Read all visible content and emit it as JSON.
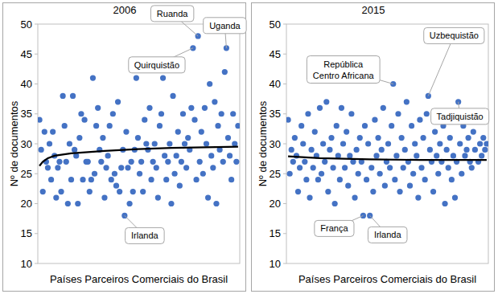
{
  "chart_data": [
    {
      "type": "scatter",
      "title": "2006",
      "x_label": "Países Parceiros Comerciais do Brasil",
      "y_label": "Nº de documentos",
      "xlim": [
        0,
        121
      ],
      "ylim": [
        10,
        50
      ],
      "yticks": [
        10,
        15,
        20,
        25,
        30,
        35,
        40,
        45,
        50
      ],
      "tick_labels": "y",
      "grid": false,
      "series": [
        {
          "type": "scatter",
          "color": "#4472c4",
          "marker": "circle",
          "x": [
            1,
            2,
            3,
            4,
            5,
            6,
            7,
            8,
            9,
            10,
            11,
            12,
            13,
            14,
            15,
            16,
            17,
            18,
            19,
            20,
            21,
            22,
            23,
            24,
            25,
            26,
            27,
            28,
            29,
            30,
            31,
            32,
            33,
            34,
            35,
            36,
            37,
            38,
            39,
            40,
            41,
            42,
            43,
            44,
            45,
            46,
            47,
            48,
            49,
            50,
            51,
            52,
            53,
            54,
            55,
            56,
            57,
            58,
            59,
            60,
            61,
            62,
            63,
            64,
            65,
            66,
            67,
            68,
            69,
            70,
            71,
            72,
            73,
            74,
            75,
            76,
            77,
            78,
            79,
            80,
            81,
            82,
            83,
            84,
            85,
            86,
            87,
            88,
            89,
            90,
            91,
            92,
            93,
            94,
            95,
            96,
            97,
            98,
            99,
            100,
            101,
            102,
            103,
            104,
            105,
            106,
            107,
            108,
            109,
            110,
            111,
            112,
            113,
            114,
            115,
            116,
            117,
            118,
            119,
            120
          ],
          "values": [
            34,
            29,
            22,
            32,
            27,
            26,
            30,
            24,
            32,
            28,
            21,
            26,
            27,
            22,
            38,
            33,
            27,
            20,
            30,
            24,
            38,
            29,
            28,
            20,
            31,
            35,
            24,
            34,
            27,
            27,
            22,
            24,
            41,
            25,
            33,
            36,
            29,
            27,
            31,
            21,
            26,
            28,
            33,
            24,
            35,
            25,
            23,
            37,
            22,
            26,
            29,
            18,
            32,
            26,
            20,
            27,
            22,
            29,
            41,
            31,
            25,
            27,
            22,
            34,
            30,
            29,
            36,
            24,
            27,
            30,
            26,
            21,
            33,
            35,
            41,
            28,
            24,
            27,
            30,
            20,
            38,
            25,
            28,
            32,
            23,
            27,
            35,
            30,
            26,
            31,
            29,
            36,
            46,
            34,
            24,
            48,
            27,
            32,
            25,
            36,
            30,
            21,
            40,
            28,
            26,
            37,
            20,
            33,
            29,
            35,
            27,
            42,
            46,
            31,
            28,
            24,
            35,
            30,
            27,
            33
          ]
        },
        {
          "type": "line",
          "color": "#000000",
          "line_style": "solid",
          "x": [
            1,
            3,
            6,
            10,
            20,
            40,
            60,
            80,
            100,
            120
          ],
          "values": [
            26.3,
            27,
            27.6,
            28,
            28.4,
            28.8,
            29.1,
            29.3,
            29.4,
            29.5
          ]
        }
      ],
      "annotations": [
        {
          "text": "Ruanda",
          "x": 96,
          "y": 48
        },
        {
          "text": "Uganda",
          "x": 113,
          "y": 46
        },
        {
          "text": "Quirquistão",
          "x": 93,
          "y": 46
        },
        {
          "text": "Irlanda",
          "x": 52,
          "y": 18
        }
      ]
    },
    {
      "type": "scatter",
      "title": "2015",
      "x_label": "Países Parceiros Comerciais do Brasil",
      "y_label": "Nº de documentos",
      "xlim": [
        0,
        121
      ],
      "ylim": [
        10,
        50
      ],
      "yticks": [
        10,
        15,
        20,
        25,
        30,
        35,
        40,
        45,
        50
      ],
      "tick_labels": "y",
      "grid": false,
      "series": [
        {
          "type": "scatter",
          "color": "#4472c4",
          "marker": "circle",
          "x": [
            1,
            2,
            3,
            4,
            5,
            6,
            7,
            8,
            9,
            10,
            11,
            12,
            13,
            14,
            15,
            16,
            17,
            18,
            19,
            20,
            21,
            22,
            23,
            24,
            25,
            26,
            27,
            28,
            29,
            30,
            31,
            32,
            33,
            34,
            35,
            36,
            37,
            38,
            39,
            40,
            41,
            42,
            43,
            44,
            45,
            46,
            47,
            48,
            49,
            50,
            51,
            52,
            53,
            54,
            55,
            56,
            57,
            58,
            59,
            60,
            61,
            62,
            63,
            64,
            65,
            66,
            67,
            68,
            69,
            70,
            71,
            72,
            73,
            74,
            75,
            76,
            77,
            78,
            79,
            80,
            81,
            82,
            83,
            84,
            85,
            86,
            87,
            88,
            89,
            90,
            91,
            92,
            93,
            94,
            95,
            96,
            97,
            98,
            99,
            100,
            101,
            102,
            103,
            104,
            105,
            106,
            107,
            108,
            109,
            110,
            111,
            112,
            113,
            114,
            115,
            116,
            117,
            118,
            119,
            120
          ],
          "values": [
            34,
            25,
            29,
            27,
            31,
            28,
            22,
            26,
            33,
            30,
            27,
            24,
            35,
            21,
            29,
            26,
            32,
            28,
            24,
            36,
            25,
            30,
            27,
            37,
            22,
            29,
            31,
            26,
            20,
            33,
            28,
            24,
            36,
            30,
            26,
            32,
            23,
            28,
            35,
            27,
            21,
            29,
            25,
            31,
            27,
            18,
            33,
            24,
            30,
            18,
            26,
            22,
            34,
            28,
            31,
            25,
            29,
            36,
            23,
            27,
            30,
            26,
            33,
            40,
            24,
            28,
            35,
            22,
            31,
            26,
            29,
            37,
            27,
            23,
            33,
            25,
            30,
            28,
            21,
            34,
            26,
            31,
            24,
            35,
            38,
            29,
            27,
            22,
            32,
            28,
            25,
            30,
            27,
            33,
            20,
            29,
            26,
            31,
            24,
            28,
            21,
            27,
            37,
            30,
            25,
            33,
            28,
            29,
            31,
            27,
            26,
            32,
            29,
            35,
            27,
            30,
            28,
            31,
            29,
            30
          ]
        },
        {
          "type": "line",
          "color": "#000000",
          "line_style": "solid",
          "x": [
            1,
            20,
            50,
            80,
            120
          ],
          "values": [
            27.9,
            27.6,
            27.4,
            27.3,
            27.3
          ]
        }
      ],
      "annotations": [
        {
          "text": "República Centro Africana",
          "x": 64,
          "y": 40
        },
        {
          "text": "Uzbequistão",
          "x": 85,
          "y": 38
        },
        {
          "text": "Tadjiquistão",
          "x": 103,
          "y": 37
        },
        {
          "text": "França",
          "x": 46,
          "y": 18
        },
        {
          "text": "Irlanda",
          "x": 50,
          "y": 18
        }
      ]
    }
  ]
}
